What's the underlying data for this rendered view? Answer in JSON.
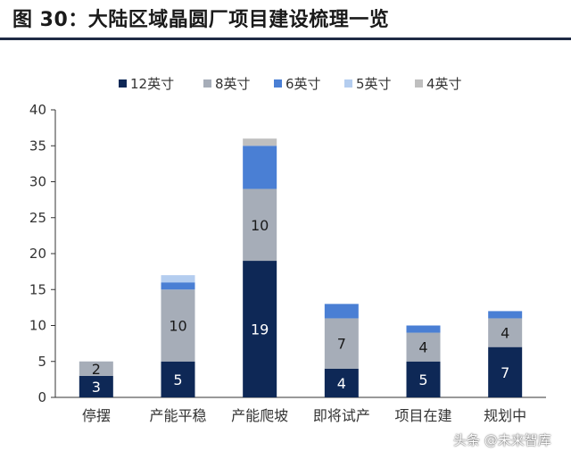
{
  "header": {
    "title": "图 30：大陆区域晶圆厂项目建设梳理一览"
  },
  "watermark": "头条 @未来智库",
  "colors": {
    "header_rule": "#1f2a44",
    "axis": "#333333"
  },
  "chart_data": {
    "type": "bar",
    "stacked": true,
    "categories": [
      "停摆",
      "产能平稳",
      "产能爬坡",
      "即将试产",
      "项目在建",
      "规划中"
    ],
    "series": [
      {
        "name": "12英寸",
        "color": "#0e2856",
        "label_color": "#ffffff",
        "values": [
          3,
          5,
          19,
          4,
          5,
          7
        ],
        "labels": [
          "3",
          "5",
          "19",
          "4",
          "5",
          "7"
        ]
      },
      {
        "name": "8英寸",
        "color": "#a6adb8",
        "label_color": "#1a1a1a",
        "values": [
          2,
          10,
          10,
          7,
          4,
          4
        ],
        "labels": [
          "2",
          "10",
          "10",
          "7",
          "4",
          "4"
        ]
      },
      {
        "name": "6英寸",
        "color": "#4a7fd4",
        "label_color": "#ffffff",
        "values": [
          0,
          1,
          6,
          2,
          1,
          1
        ],
        "labels": [
          "",
          "",
          "",
          "",
          "",
          ""
        ]
      },
      {
        "name": "5英寸",
        "color": "#b4cdef",
        "label_color": "#1a1a1a",
        "values": [
          0,
          1,
          0,
          0,
          0,
          0
        ],
        "labels": [
          "",
          "",
          "",
          "",
          "",
          ""
        ]
      },
      {
        "name": "4英寸",
        "color": "#bfbfbf",
        "label_color": "#1a1a1a",
        "values": [
          0,
          0,
          1,
          0,
          0,
          0
        ],
        "labels": [
          "",
          "",
          "",
          "",
          "",
          ""
        ]
      }
    ],
    "ylim": [
      0,
      40
    ],
    "yticks": [
      0,
      5,
      10,
      15,
      20,
      25,
      30,
      35,
      40
    ],
    "grid": false,
    "legend_position": "top"
  }
}
